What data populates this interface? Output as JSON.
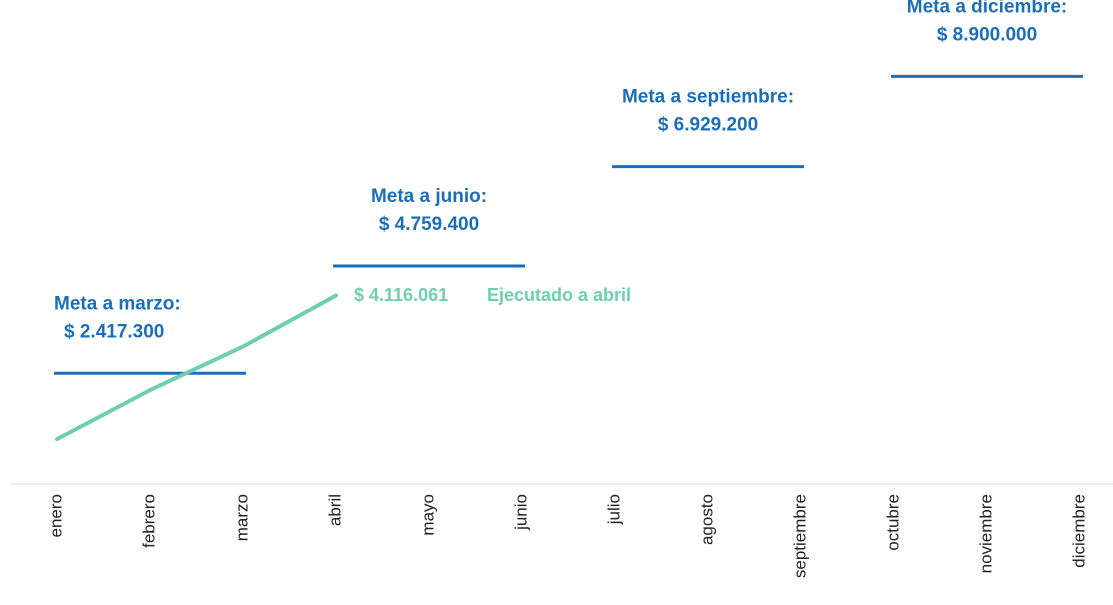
{
  "chart_data": {
    "type": "line",
    "categories": [
      "enero",
      "febrero",
      "marzo",
      "abril",
      "mayo",
      "junio",
      "julio",
      "agosto",
      "septiembre",
      "octubre",
      "noviembre",
      "diciembre"
    ],
    "series": [
      {
        "name": "Ejecutado a abril",
        "color": "#6dcfae",
        "values": [
          980000,
          2050000,
          3000000,
          4116061,
          null,
          null,
          null,
          null,
          null,
          null,
          null,
          null
        ]
      }
    ],
    "annotation": {
      "value_label": "$ 4.116.061",
      "text": "Ejecutado a abril"
    },
    "targets": [
      {
        "label": "Meta a marzo:",
        "value": 2417300,
        "value_label": "$ 2.417.300"
      },
      {
        "label": "Meta a junio:",
        "value": 4759400,
        "value_label": "$ 4.759.400"
      },
      {
        "label": "Meta a septiembre:",
        "value": 6929200,
        "value_label": "$ 6.929.200"
      },
      {
        "label": "Meta a diciembre:",
        "value": 8900000,
        "value_label": "$ 8.900.000"
      }
    ],
    "target_color": "#1b6fba",
    "ylim": [
      0,
      10000000
    ]
  }
}
